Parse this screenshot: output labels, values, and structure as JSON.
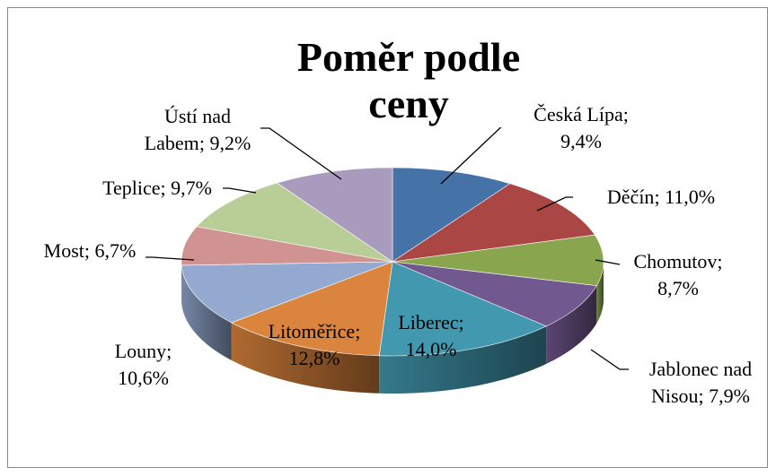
{
  "chart_data": {
    "type": "pie",
    "style": "3d",
    "title": "Poměr podle ceny",
    "categories": [
      "Česká Lípa",
      "Děčín",
      "Chomutov",
      "Jablonec nad Nisou",
      "Liberec",
      "Litoměřice",
      "Louny",
      "Most",
      "Teplice",
      "Ústí nad Labem"
    ],
    "values": [
      9.4,
      11.0,
      8.7,
      7.9,
      14.0,
      12.8,
      10.6,
      6.7,
      9.7,
      9.2
    ],
    "value_labels": [
      "9,4%",
      "11,0%",
      "8,7%",
      "7,9%",
      "14,0%",
      "12,8%",
      "10,6%",
      "6,7%",
      "9,7%",
      "9,2%"
    ],
    "label_separator": "; ",
    "colors": [
      "#4572a7",
      "#aa4643",
      "#89a54e",
      "#71588f",
      "#4198af",
      "#db843d",
      "#93a9cf",
      "#d19392",
      "#b9cd96",
      "#a99bbd"
    ]
  }
}
